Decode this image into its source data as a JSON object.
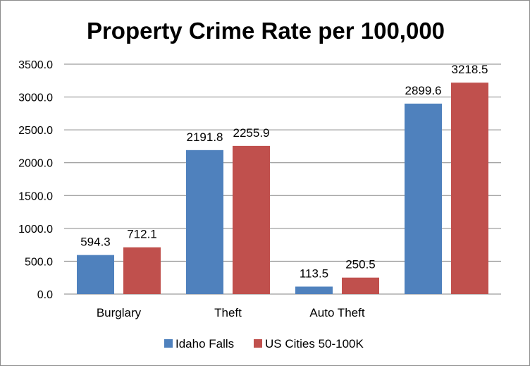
{
  "chart_data": {
    "type": "bar",
    "title": "Property Crime Rate per 100,000",
    "categories": [
      "Burglary",
      "Theft",
      "Auto Theft",
      ""
    ],
    "series": [
      {
        "name": "Idaho Falls",
        "values": [
          594.3,
          2191.8,
          113.5,
          2899.6
        ],
        "color": "#4f81bd"
      },
      {
        "name": "US Cities 50-100K",
        "values": [
          712.1,
          2255.9,
          250.5,
          3218.5
        ],
        "color": "#c0504d"
      }
    ],
    "data_labels": [
      [
        "594.3",
        "2191.8",
        "113.5",
        "2899.6"
      ],
      [
        "712.1",
        "2255.9",
        "250.5",
        "3218.5"
      ]
    ],
    "ylim": [
      0,
      3500
    ],
    "yticks": [
      "0.0",
      "500.0",
      "1000.0",
      "1500.0",
      "2000.0",
      "2500.0",
      "3000.0",
      "3500.0"
    ],
    "xlabel": "",
    "ylabel": "",
    "grid": true,
    "legend_position": "bottom"
  }
}
